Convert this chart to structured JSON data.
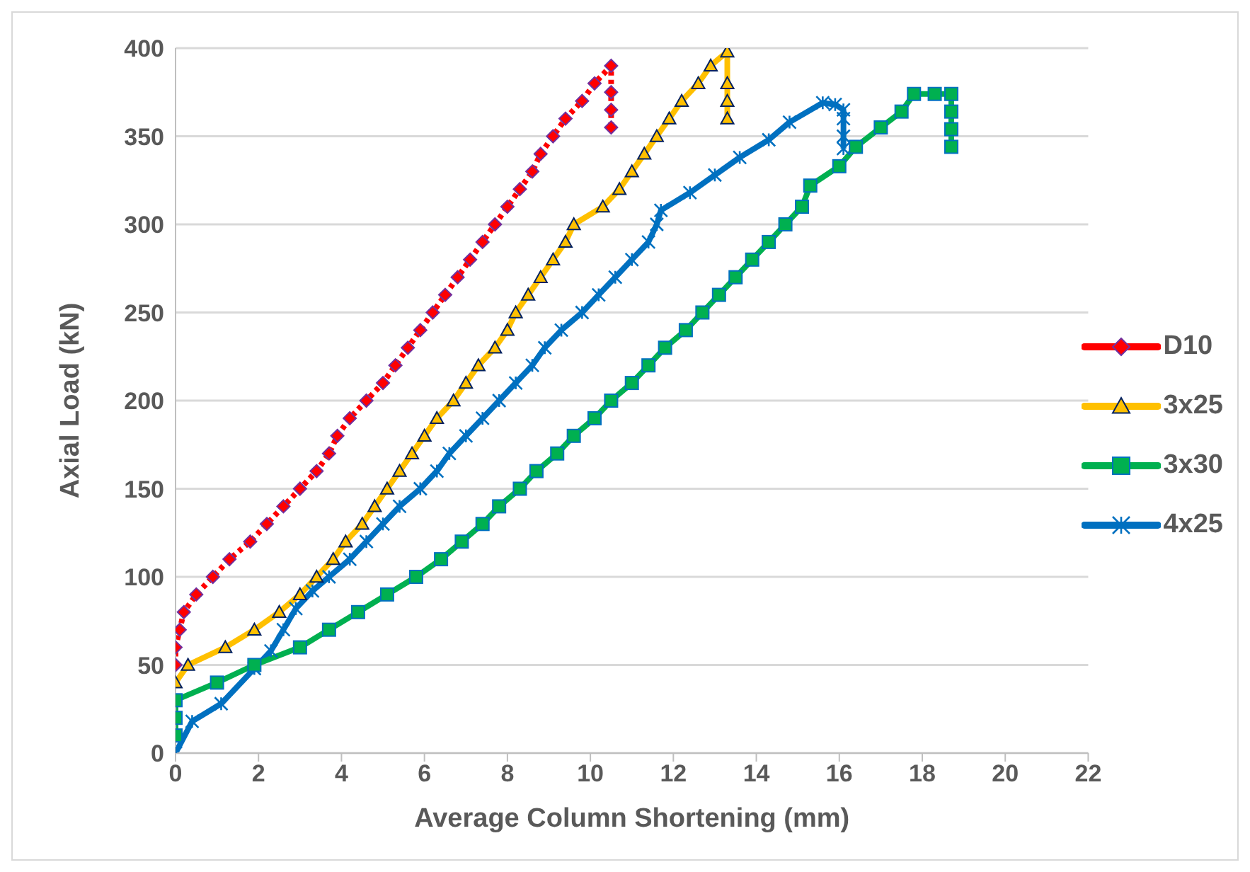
{
  "chart_data": {
    "type": "line",
    "xlabel": "Average Column Shortening (mm)",
    "ylabel": "Axial Load (kN)",
    "xlim": [
      0,
      22
    ],
    "xticks": [
      0,
      2,
      4,
      6,
      8,
      10,
      12,
      14,
      16,
      18,
      20,
      22
    ],
    "ylim": [
      0,
      400
    ],
    "yticks": [
      0,
      50,
      100,
      150,
      200,
      250,
      300,
      350,
      400
    ],
    "grid": "y",
    "legend": "right",
    "series": [
      {
        "name": "D10",
        "color": "#ff0000",
        "marker": "diamond",
        "line_style": "dotted",
        "x": [
          0,
          0,
          0.1,
          0.2,
          0.5,
          0.9,
          1.3,
          1.8,
          2.2,
          2.6,
          3.0,
          3.4,
          3.7,
          3.9,
          4.2,
          4.6,
          5.0,
          5.3,
          5.6,
          5.9,
          6.2,
          6.5,
          6.8,
          7.1,
          7.4,
          7.7,
          8.0,
          8.3,
          8.6,
          8.8,
          9.1,
          9.4,
          9.8,
          10.1,
          10.5,
          10.5,
          10.5,
          10.5
        ],
        "values": [
          50,
          60,
          70,
          80,
          90,
          100,
          110,
          120,
          130,
          140,
          150,
          160,
          170,
          180,
          190,
          200,
          210,
          220,
          230,
          240,
          250,
          260,
          270,
          280,
          290,
          300,
          310,
          320,
          330,
          340,
          350,
          360,
          370,
          380,
          390,
          375,
          365,
          355
        ]
      },
      {
        "name": "3x25",
        "color": "#ffc000",
        "marker": "triangle",
        "x": [
          0,
          0.3,
          1.2,
          1.9,
          2.5,
          3.0,
          3.4,
          3.8,
          4.1,
          4.5,
          4.8,
          5.1,
          5.4,
          5.7,
          6.0,
          6.3,
          6.7,
          7.0,
          7.3,
          7.7,
          8.0,
          8.2,
          8.5,
          8.8,
          9.1,
          9.4,
          9.6,
          10.3,
          10.7,
          11.0,
          11.3,
          11.6,
          11.9,
          12.2,
          12.6,
          12.9,
          13.3,
          13.3,
          13.3,
          13.3
        ],
        "values": [
          40,
          50,
          60,
          70,
          80,
          90,
          100,
          110,
          120,
          130,
          140,
          150,
          160,
          170,
          180,
          190,
          200,
          210,
          220,
          230,
          240,
          250,
          260,
          270,
          280,
          290,
          300,
          310,
          320,
          330,
          340,
          350,
          360,
          370,
          380,
          390,
          398,
          380,
          370,
          360
        ]
      },
      {
        "name": "3x30",
        "color": "#00b050",
        "marker": "square",
        "x": [
          0,
          0,
          0,
          1,
          1.9,
          3,
          3.7,
          4.4,
          5.1,
          5.8,
          6.4,
          6.9,
          7.4,
          7.8,
          8.3,
          8.7,
          9.2,
          9.6,
          10.1,
          10.5,
          11,
          11.4,
          11.8,
          12.3,
          12.7,
          13.1,
          13.5,
          13.9,
          14.3,
          14.7,
          15.1,
          15.3,
          16,
          16.4,
          17,
          17.5,
          17.8,
          18.3,
          18.7,
          18.7,
          18.7,
          18.7
        ],
        "values": [
          10,
          20,
          30,
          40,
          50,
          60,
          70,
          80,
          90,
          100,
          110,
          120,
          130,
          140,
          150,
          160,
          170,
          180,
          190,
          200,
          210,
          220,
          230,
          240,
          250,
          260,
          270,
          280,
          290,
          300,
          310,
          322,
          333,
          344,
          355,
          364,
          374,
          374,
          374,
          364,
          354,
          344
        ]
      },
      {
        "name": "4x25",
        "color": "#0070c0",
        "marker": "cross",
        "x": [
          0,
          0.4,
          1.1,
          1.9,
          2.3,
          2.6,
          2.9,
          3.3,
          3.7,
          4.2,
          4.6,
          5.0,
          5.4,
          5.9,
          6.3,
          6.6,
          7.0,
          7.4,
          7.8,
          8.2,
          8.6,
          8.9,
          9.3,
          9.8,
          10.2,
          10.6,
          11,
          11.4,
          11.6,
          11.7,
          12.4,
          13.0,
          13.6,
          14.3,
          14.8,
          15.6,
          15.9,
          16.1,
          16.1,
          16.1,
          16.1
        ],
        "values": [
          0,
          18,
          28,
          48,
          58,
          70,
          82,
          92,
          100,
          110,
          120,
          130,
          140,
          150,
          160,
          170,
          180,
          190,
          200,
          210,
          220,
          230,
          240,
          250,
          260,
          270,
          280,
          290,
          300,
          308,
          318,
          328,
          338,
          348,
          358,
          369,
          368,
          365,
          360,
          350,
          343
        ]
      }
    ]
  }
}
